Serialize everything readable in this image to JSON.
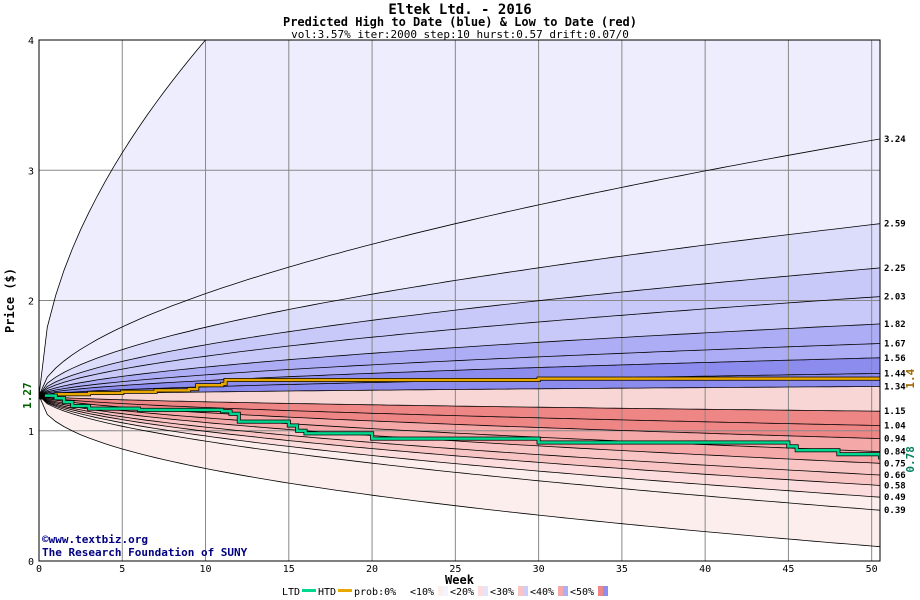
{
  "chart_data": {
    "type": "area",
    "title": "Eltek Ltd. - 2016",
    "subtitle": "Predicted High to Date (blue) &  Low to Date (red)",
    "params": "vol:3.57% iter:2000 step:10 hurst:0.57 drift:0.07/0",
    "xlabel": "Week",
    "ylabel": "Price ($)",
    "xlim": [
      0,
      50.5
    ],
    "ylim": [
      0,
      4
    ],
    "x_ticks": [
      0,
      5,
      10,
      15,
      20,
      25,
      30,
      35,
      40,
      45,
      50
    ],
    "y_ticks": [
      0,
      1,
      2,
      3,
      4
    ],
    "grid": true,
    "start_price": "1.27",
    "start_value": 1.27,
    "htd_end_label": "1.4",
    "htd_end_value": 1.4,
    "ltd_end_label": "0.78",
    "ltd_end_value": 0.78,
    "high_quantiles": [
      {
        "label": "3.24",
        "end": 3.24
      },
      {
        "label": "2.59",
        "end": 2.59
      },
      {
        "label": "2.25",
        "end": 2.25
      },
      {
        "label": "2.03",
        "end": 2.03
      },
      {
        "label": "1.82",
        "end": 1.82
      },
      {
        "label": "1.67",
        "end": 1.67
      },
      {
        "label": "1.56",
        "end": 1.56
      },
      {
        "label": "1.44",
        "end": 1.44
      },
      {
        "label": "1.34",
        "end": 1.34
      }
    ],
    "low_quantiles": [
      {
        "label": "1.15",
        "end": 1.15
      },
      {
        "label": "1.04",
        "end": 1.04
      },
      {
        "label": "0.94",
        "end": 0.94
      },
      {
        "label": "0.84",
        "end": 0.84
      },
      {
        "label": "0.75",
        "end": 0.75
      },
      {
        "label": "0.66",
        "end": 0.66
      },
      {
        "label": "0.58",
        "end": 0.58
      },
      {
        "label": "0.49",
        "end": 0.49
      },
      {
        "label": "0.39",
        "end": 0.39
      }
    ],
    "htd_series": [
      [
        0,
        1.27
      ],
      [
        1,
        1.28
      ],
      [
        3,
        1.29
      ],
      [
        5,
        1.3
      ],
      [
        7,
        1.31
      ],
      [
        9,
        1.32
      ],
      [
        9.5,
        1.35
      ],
      [
        11,
        1.36
      ],
      [
        11.2,
        1.39
      ],
      [
        20,
        1.39
      ],
      [
        30,
        1.4
      ],
      [
        50.5,
        1.4
      ]
    ],
    "ltd_series": [
      [
        0,
        1.27
      ],
      [
        1,
        1.25
      ],
      [
        1.5,
        1.22
      ],
      [
        2,
        1.19
      ],
      [
        3,
        1.17
      ],
      [
        6,
        1.16
      ],
      [
        11,
        1.15
      ],
      [
        11.5,
        1.13
      ],
      [
        12,
        1.07
      ],
      [
        15,
        1.04
      ],
      [
        15.5,
        1.0
      ],
      [
        16,
        0.98
      ],
      [
        20,
        0.94
      ],
      [
        30,
        0.91
      ],
      [
        45,
        0.88
      ],
      [
        45.5,
        0.85
      ],
      [
        48,
        0.82
      ],
      [
        50.5,
        0.78
      ]
    ],
    "legend": {
      "ltd": "LTD",
      "htd": "HTD",
      "prob": "prob:0%",
      "buckets": [
        "<10%",
        "<20%",
        "<30%",
        "<40%",
        "<50%"
      ]
    },
    "colors": {
      "htd": "#e8a800",
      "ltd": "#00d890",
      "blue_bands": [
        "#ededfd",
        "#dcdcfb",
        "#c8c8f9",
        "#adadf5",
        "#8c8cef"
      ],
      "red_bands": [
        "#fdeeee",
        "#fcdcdc",
        "#f9c4c4",
        "#f5a8a8",
        "#ef8686"
      ],
      "legend_boxes": [
        "#ffffff",
        "#f4f4fe",
        "#e4e4fc",
        "#cccdf8",
        "#aeaef4",
        "#8e8ef0"
      ]
    }
  },
  "credits": {
    "url": "www.textbiz.org",
    "org": "The Research Foundation of SUNY"
  }
}
